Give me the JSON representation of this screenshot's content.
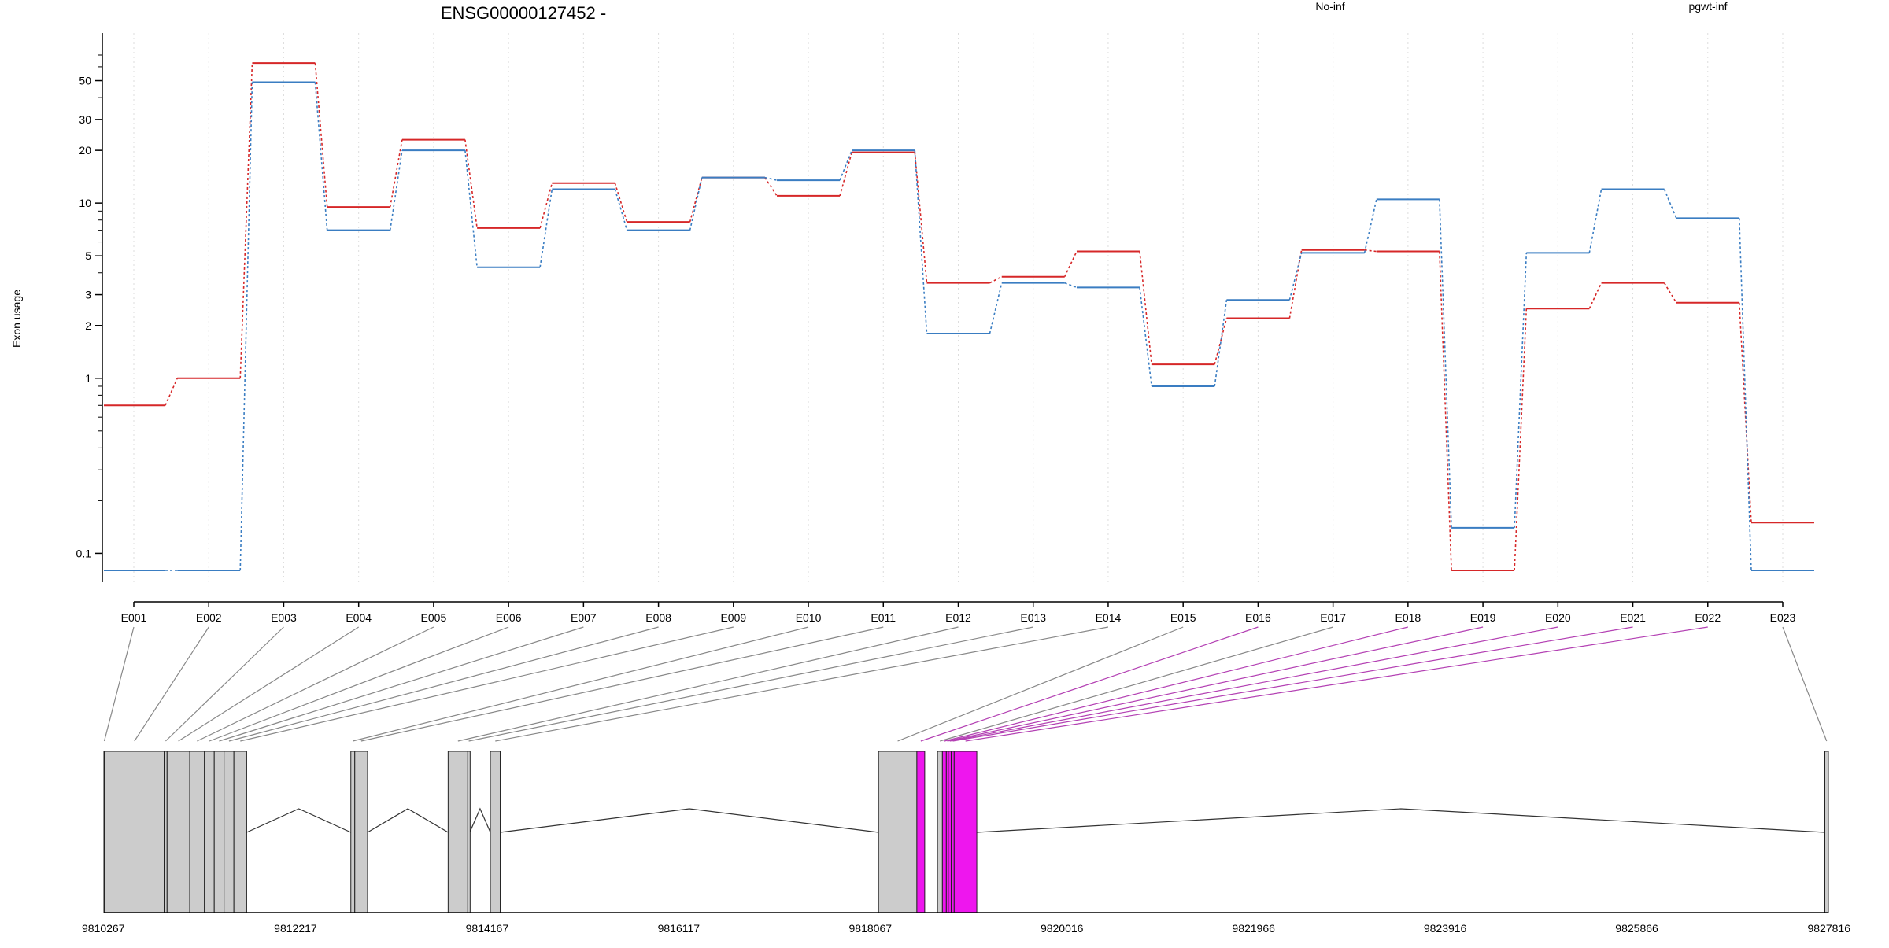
{
  "chart_data": {
    "type": "line",
    "title": "ENSG00000127452 -",
    "ylabel": "Exon usage",
    "yscale": "log",
    "ylim": [
      0.08,
      70
    ],
    "y_ticks": [
      0.1,
      1,
      2,
      3,
      5,
      10,
      20,
      30,
      50
    ],
    "y_tick_labels": [
      "0.1",
      "1",
      "2",
      "3",
      "5",
      "10",
      "20",
      "30",
      "50"
    ],
    "grid": "vertical dotted",
    "categories": [
      "E001",
      "E002",
      "E003",
      "E004",
      "E005",
      "E006",
      "E007",
      "E008",
      "E009",
      "E010",
      "E011",
      "E012",
      "E013",
      "E014",
      "E015",
      "E016",
      "E017",
      "E018",
      "E019",
      "E020",
      "E021",
      "E022",
      "E023"
    ],
    "legend_position": "top",
    "series": [
      {
        "name": "No-inf",
        "color": "#d62728",
        "values": [
          0.7,
          1.0,
          63,
          9.5,
          23,
          7.2,
          13,
          7.8,
          14,
          11,
          19.5,
          3.5,
          3.8,
          5.3,
          1.2,
          2.2,
          5.4,
          5.3,
          0.08,
          2.5,
          3.5,
          2.7,
          0.15
        ]
      },
      {
        "name": "pgwt-inf",
        "color": "#3a7dc2",
        "values": [
          0.08,
          0.08,
          49,
          7.0,
          20,
          4.3,
          12,
          7.0,
          14,
          13.5,
          20,
          1.8,
          3.5,
          3.3,
          0.9,
          2.8,
          5.2,
          10.5,
          0.14,
          5.2,
          12,
          8.2,
          0.08
        ]
      }
    ],
    "gene_model": {
      "genomic_axis_labels": [
        "9810267",
        "9812217",
        "9814167",
        "9816117",
        "9818067",
        "9820016",
        "9821966",
        "9823916",
        "9825866",
        "9827816"
      ],
      "genomic_range": [
        9810267,
        9827816
      ],
      "exons": [
        {
          "id": "E001",
          "start": 9810267,
          "end": 9810275,
          "highlight": false
        },
        {
          "id": "E002",
          "start": 9810275,
          "end": 9810880,
          "highlight": false
        },
        {
          "id": "E003",
          "start": 9810880,
          "end": 9810910,
          "highlight": false
        },
        {
          "id": "E004",
          "start": 9810910,
          "end": 9811140,
          "highlight": false
        },
        {
          "id": "E005",
          "start": 9811140,
          "end": 9811290,
          "highlight": false
        },
        {
          "id": "E006",
          "start": 9811290,
          "end": 9811390,
          "highlight": false
        },
        {
          "id": "E007",
          "start": 9811390,
          "end": 9811490,
          "highlight": false
        },
        {
          "id": "E008",
          "start": 9811490,
          "end": 9811590,
          "highlight": false
        },
        {
          "id": "E009",
          "start": 9811590,
          "end": 9811720,
          "highlight": false
        },
        {
          "id": "E010",
          "start": 9812780,
          "end": 9812820,
          "highlight": false
        },
        {
          "id": "E011",
          "start": 9812820,
          "end": 9812950,
          "highlight": false
        },
        {
          "id": "E012",
          "start": 9813770,
          "end": 9813970,
          "highlight": false
        },
        {
          "id": "E013",
          "start": 9813970,
          "end": 9813990,
          "highlight": false
        },
        {
          "id": "E014",
          "start": 9814200,
          "end": 9814300,
          "highlight": false
        },
        {
          "id": "E015",
          "start": 9818150,
          "end": 9818540,
          "highlight": false
        },
        {
          "id": "E016",
          "start": 9818540,
          "end": 9818620,
          "highlight": true
        },
        {
          "id": "E017",
          "start": 9818750,
          "end": 9818800,
          "highlight": false
        },
        {
          "id": "E018",
          "start": 9818800,
          "end": 9818840,
          "highlight": true
        },
        {
          "id": "E019",
          "start": 9818840,
          "end": 9818860,
          "highlight": true
        },
        {
          "id": "E020",
          "start": 9818860,
          "end": 9818890,
          "highlight": true
        },
        {
          "id": "E021",
          "start": 9818890,
          "end": 9818920,
          "highlight": true
        },
        {
          "id": "E022",
          "start": 9818920,
          "end": 9819150,
          "highlight": true
        },
        {
          "id": "E023",
          "start": 9827780,
          "end": 9827816,
          "highlight": false
        }
      ],
      "exon_color": "#cccccc",
      "highlight_color": "#ee16ee"
    }
  }
}
